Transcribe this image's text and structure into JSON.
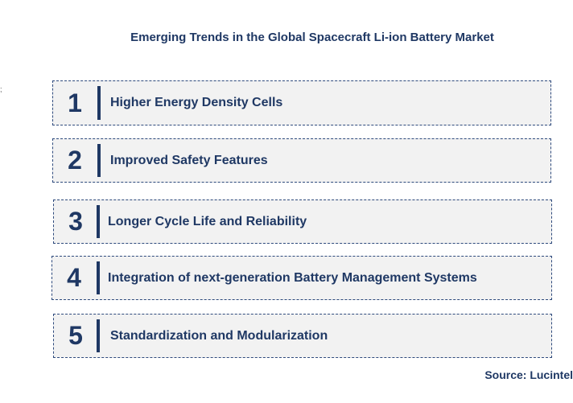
{
  "title": "Emerging Trends in the Global Spacecraft Li-ion Battery Market",
  "stray_mark": ";",
  "trends": [
    {
      "number": "1",
      "label": "Higher Energy Density Cells"
    },
    {
      "number": "2",
      "label": "Improved Safety Features"
    },
    {
      "number": "3",
      "label": "Longer Cycle Life and Reliability"
    },
    {
      "number": "4",
      "label": "Integration of next-generation Battery Management Systems"
    },
    {
      "number": "5",
      "label": "Standardization and Modularization"
    }
  ],
  "source": "Source: Lucintel",
  "colors": {
    "accent": "#1f3864",
    "box_fill": "#f2f2f2",
    "box_border": "#2e4a7d"
  }
}
